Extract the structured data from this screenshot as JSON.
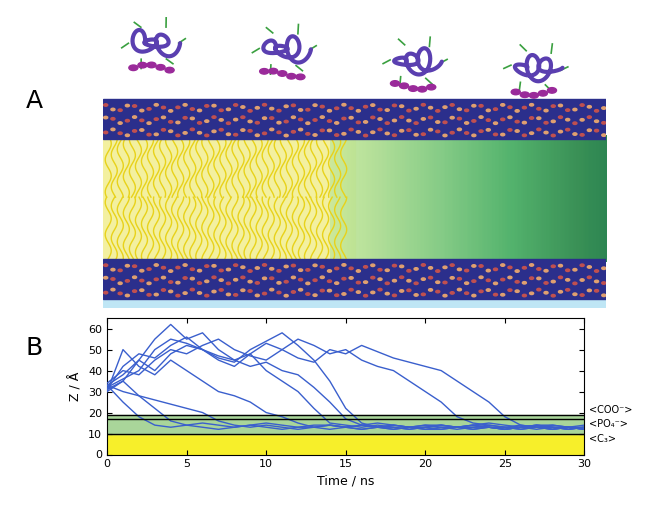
{
  "panel_labels": [
    "A",
    "B"
  ],
  "chart_data": {
    "type": "line",
    "xlabel": "Time / ns",
    "ylabel": "Z / Å",
    "xlim": [
      0,
      30
    ],
    "ylim": [
      0,
      65
    ],
    "xticks": [
      0,
      5,
      10,
      15,
      20,
      25,
      30
    ],
    "yticks": [
      0,
      10,
      20,
      30,
      40,
      50,
      60
    ],
    "x": [
      0,
      1,
      2,
      3,
      4,
      5,
      6,
      7,
      8,
      9,
      10,
      11,
      12,
      13,
      14,
      15,
      16,
      17,
      18,
      19,
      20,
      21,
      22,
      23,
      24,
      25,
      26,
      27,
      28,
      29,
      30
    ],
    "series": [
      {
        "color": "#3a5fcd",
        "values": [
          33,
          25,
          18,
          14,
          13,
          14,
          13,
          12,
          13,
          14,
          13,
          12,
          13,
          13,
          12,
          13,
          14,
          13,
          12,
          13,
          13,
          12,
          13,
          13,
          14,
          13,
          12,
          13,
          13,
          12,
          13
        ]
      },
      {
        "color": "#3a5fcd",
        "values": [
          31,
          35,
          28,
          22,
          16,
          14,
          15,
          14,
          13,
          14,
          15,
          14,
          13,
          14,
          14,
          13,
          14,
          15,
          14,
          13,
          14,
          14,
          13,
          14,
          15,
          14,
          13,
          14,
          14,
          13,
          14
        ]
      },
      {
        "color": "#3a5fcd",
        "values": [
          30,
          50,
          42,
          38,
          45,
          40,
          35,
          30,
          28,
          25,
          20,
          18,
          15,
          13,
          14,
          13,
          12,
          13,
          14,
          13,
          12,
          12,
          13,
          14,
          13,
          12,
          13,
          13,
          12,
          13,
          12
        ]
      },
      {
        "color": "#3a5fcd",
        "values": [
          33,
          38,
          45,
          55,
          62,
          55,
          58,
          50,
          45,
          48,
          40,
          35,
          30,
          22,
          15,
          14,
          13,
          14,
          13,
          12,
          13,
          14,
          13,
          12,
          13,
          13,
          12,
          13,
          14,
          13,
          12
        ]
      },
      {
        "color": "#3a5fcd",
        "values": [
          34,
          40,
          38,
          45,
          50,
          48,
          52,
          55,
          50,
          47,
          45,
          50,
          55,
          52,
          48,
          50,
          45,
          42,
          40,
          35,
          30,
          25,
          18,
          15,
          14,
          13,
          14,
          13,
          12,
          13,
          13
        ]
      },
      {
        "color": "#3a5fcd",
        "values": [
          30,
          35,
          45,
          40,
          48,
          52,
          50,
          45,
          42,
          48,
          53,
          50,
          46,
          44,
          50,
          48,
          52,
          49,
          46,
          44,
          42,
          40,
          35,
          30,
          25,
          18,
          14,
          13,
          12,
          13,
          12
        ]
      },
      {
        "color": "#3a5fcd",
        "values": [
          32,
          36,
          40,
          50,
          55,
          53,
          50,
          47,
          45,
          42,
          44,
          40,
          38,
          32,
          25,
          17,
          14,
          13,
          14,
          13,
          12,
          13,
          13,
          14,
          13,
          12,
          13,
          12,
          13,
          13,
          12
        ]
      },
      {
        "color": "#3a5fcd",
        "values": [
          33,
          30,
          28,
          26,
          24,
          22,
          20,
          16,
          14,
          13,
          14,
          13,
          12,
          13,
          14,
          13,
          12,
          13,
          13,
          12,
          13,
          14,
          13,
          12,
          13,
          12,
          13,
          14,
          13,
          12,
          13
        ]
      },
      {
        "color": "#3a5fcd",
        "values": [
          31,
          42,
          48,
          46,
          52,
          56,
          50,
          46,
          44,
          50,
          54,
          58,
          52,
          45,
          35,
          22,
          15,
          13,
          12,
          13,
          14,
          13,
          12,
          13,
          13,
          12,
          13,
          14,
          13,
          12,
          13
        ]
      }
    ],
    "levels": [
      {
        "label": "<COO⁻>",
        "value": 19
      },
      {
        "label": "<PO₄⁻>",
        "value": 17
      },
      {
        "label": "<C₃>",
        "value": 10
      }
    ]
  }
}
